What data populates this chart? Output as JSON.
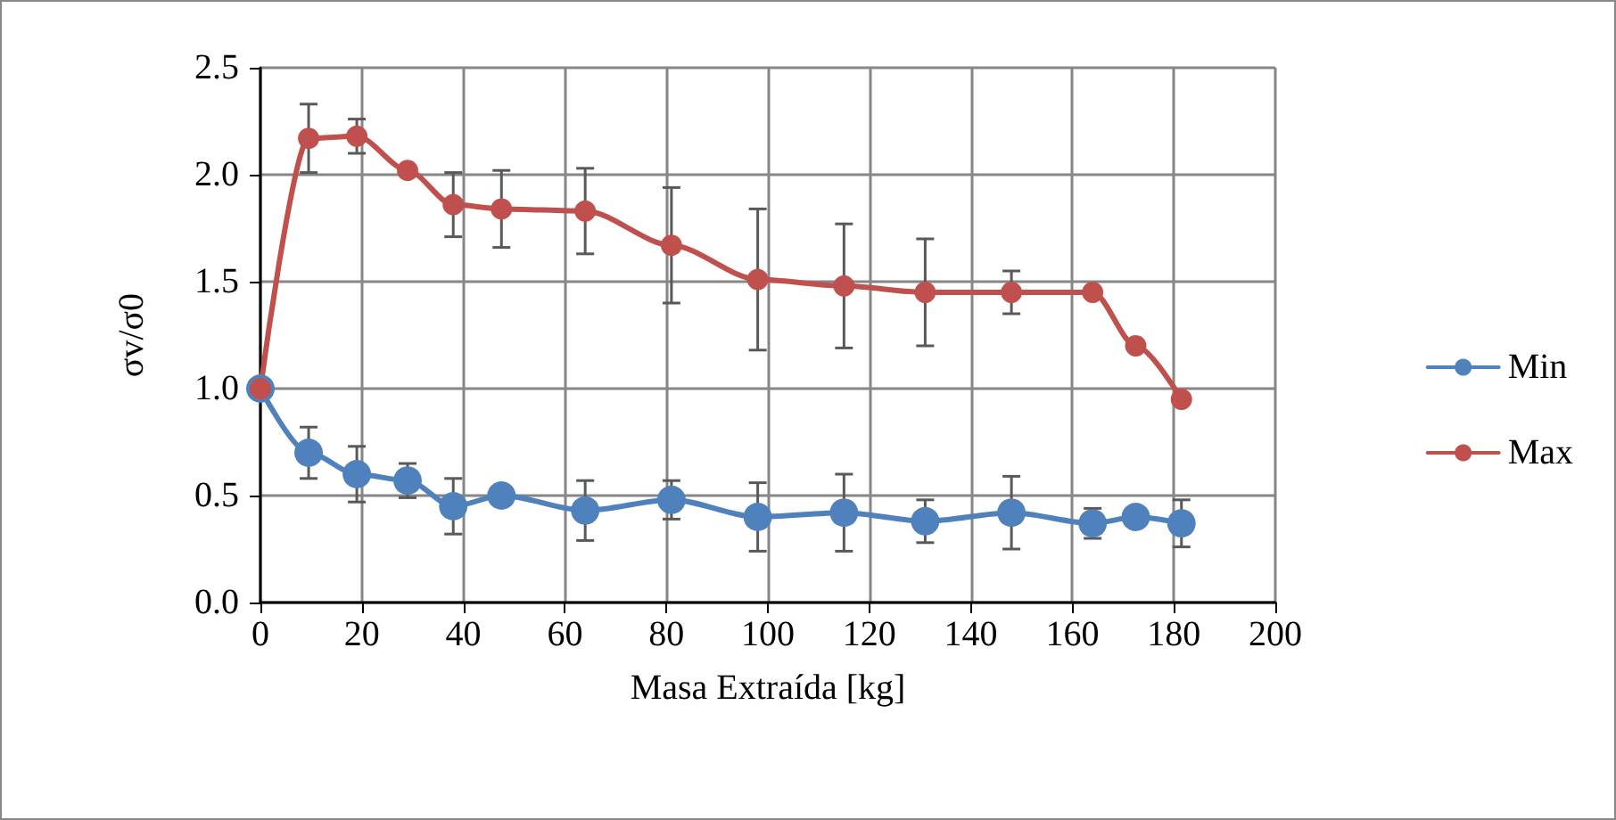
{
  "chart_data": {
    "type": "line",
    "xlabel": "Masa Extraída [kg]",
    "ylabel": "σv/σ0",
    "x": [
      0,
      9.5,
      19,
      29,
      38,
      47.5,
      64,
      81,
      98,
      115,
      131,
      148,
      164,
      172.5,
      181.5
    ],
    "series": [
      {
        "name": "Min",
        "color": "#4f81bd",
        "values": [
          1.0,
          0.7,
          0.6,
          0.57,
          0.45,
          0.5,
          0.43,
          0.48,
          0.4,
          0.42,
          0.38,
          0.42,
          0.37,
          0.4,
          0.37
        ],
        "errors": [
          null,
          0.12,
          0.13,
          0.08,
          0.13,
          null,
          0.14,
          0.09,
          0.16,
          0.18,
          0.1,
          0.17,
          0.07,
          null,
          0.11
        ]
      },
      {
        "name": "Max",
        "color": "#c0504d",
        "values": [
          1.0,
          2.17,
          2.18,
          2.02,
          1.86,
          1.84,
          1.83,
          1.67,
          1.51,
          1.48,
          1.45,
          1.45,
          1.45,
          1.2,
          0.95
        ],
        "errors": [
          null,
          0.16,
          0.08,
          null,
          0.15,
          0.18,
          0.2,
          0.27,
          0.33,
          0.29,
          0.25,
          0.1,
          null,
          null,
          null
        ]
      }
    ],
    "xlim": [
      0,
      200
    ],
    "xticks": [
      0,
      20,
      40,
      60,
      80,
      100,
      120,
      140,
      160,
      180,
      200
    ],
    "ylim": [
      0,
      2.5
    ],
    "yticks": [
      {
        "value": 0,
        "label": "0.0"
      },
      {
        "value": 0.5,
        "label": "0.5"
      },
      {
        "value": 1,
        "label": "1.0"
      },
      {
        "value": 1.5,
        "label": "1.5"
      },
      {
        "value": 2,
        "label": "2.0"
      },
      {
        "value": 2.5,
        "label": "2.5"
      }
    ],
    "grid": true,
    "legend": "right",
    "marker": "circle",
    "line_style": "solid"
  }
}
